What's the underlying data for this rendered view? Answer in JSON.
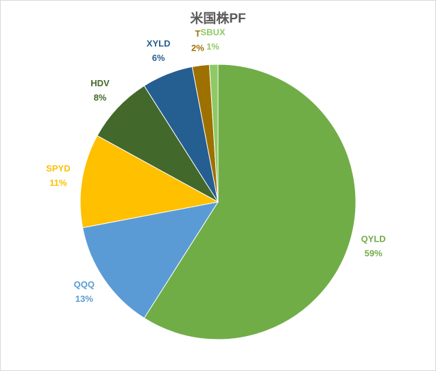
{
  "chart_data": {
    "type": "pie",
    "title": "米国株PF",
    "categories": [
      "QYLD",
      "QQQ",
      "SPYD",
      "HDV",
      "XYLD",
      "T",
      "SBUX"
    ],
    "values": [
      59,
      13,
      11,
      8,
      6,
      2,
      1
    ],
    "value_labels": [
      "59%",
      "13%",
      "11%",
      "8%",
      "6%",
      "2%",
      "1%"
    ],
    "colors": [
      "#70ad47",
      "#5b9bd5",
      "#ffc000",
      "#43682b",
      "#255e91",
      "#9e7000",
      "#8fc965"
    ]
  }
}
